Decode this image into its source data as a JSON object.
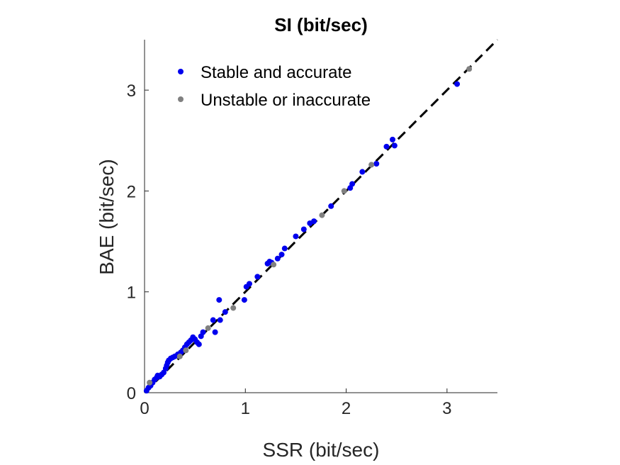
{
  "chart_data": {
    "type": "scatter",
    "title": "SI (bit/sec)",
    "xlabel": "SSR (bit/sec)",
    "ylabel": "BAE (bit/sec)",
    "xlim": [
      0,
      3.5
    ],
    "ylim": [
      0,
      3.5
    ],
    "x_ticks": [
      0,
      1,
      2,
      3
    ],
    "y_ticks": [
      0,
      1,
      2,
      3
    ],
    "legend_position": "top-left",
    "reference_line": {
      "style": "dashed",
      "color": "#000000",
      "points": [
        [
          0,
          0
        ],
        [
          3.5,
          3.5
        ]
      ]
    },
    "series": [
      {
        "name": "Stable and accurate",
        "color": "#0000ee",
        "points": [
          [
            0.02,
            0.02
          ],
          [
            0.04,
            0.05
          ],
          [
            0.06,
            0.07
          ],
          [
            0.08,
            0.1
          ],
          [
            0.1,
            0.13
          ],
          [
            0.12,
            0.15
          ],
          [
            0.13,
            0.17
          ],
          [
            0.15,
            0.16
          ],
          [
            0.17,
            0.18
          ],
          [
            0.19,
            0.2
          ],
          [
            0.21,
            0.24
          ],
          [
            0.22,
            0.27
          ],
          [
            0.23,
            0.3
          ],
          [
            0.24,
            0.32
          ],
          [
            0.26,
            0.34
          ],
          [
            0.28,
            0.35
          ],
          [
            0.3,
            0.36
          ],
          [
            0.33,
            0.38
          ],
          [
            0.36,
            0.4
          ],
          [
            0.38,
            0.42
          ],
          [
            0.4,
            0.45
          ],
          [
            0.42,
            0.48
          ],
          [
            0.44,
            0.5
          ],
          [
            0.46,
            0.52
          ],
          [
            0.48,
            0.55
          ],
          [
            0.5,
            0.53
          ],
          [
            0.52,
            0.5
          ],
          [
            0.54,
            0.48
          ],
          [
            0.56,
            0.56
          ],
          [
            0.58,
            0.6
          ],
          [
            0.68,
            0.72
          ],
          [
            0.7,
            0.6
          ],
          [
            0.74,
            0.92
          ],
          [
            0.75,
            0.72
          ],
          [
            0.8,
            0.8
          ],
          [
            0.99,
            0.92
          ],
          [
            1.01,
            1.05
          ],
          [
            1.04,
            1.08
          ],
          [
            1.12,
            1.15
          ],
          [
            1.22,
            1.28
          ],
          [
            1.24,
            1.3
          ],
          [
            1.26,
            1.29
          ],
          [
            1.32,
            1.33
          ],
          [
            1.36,
            1.37
          ],
          [
            1.39,
            1.43
          ],
          [
            1.5,
            1.55
          ],
          [
            1.58,
            1.62
          ],
          [
            1.64,
            1.68
          ],
          [
            1.68,
            1.7
          ],
          [
            1.85,
            1.85
          ],
          [
            2.04,
            2.03
          ],
          [
            2.06,
            2.07
          ],
          [
            2.16,
            2.19
          ],
          [
            2.3,
            2.27
          ],
          [
            2.4,
            2.44
          ],
          [
            2.46,
            2.51
          ],
          [
            2.48,
            2.45
          ],
          [
            3.1,
            3.06
          ]
        ]
      },
      {
        "name": "Unstable or inaccurate",
        "color": "#808080",
        "points": [
          [
            0.05,
            0.1
          ],
          [
            0.35,
            0.36
          ],
          [
            0.41,
            0.42
          ],
          [
            0.63,
            0.64
          ],
          [
            0.88,
            0.84
          ],
          [
            1.28,
            1.27
          ],
          [
            1.76,
            1.76
          ],
          [
            1.98,
            2.0
          ],
          [
            2.25,
            2.26
          ],
          [
            3.22,
            3.21
          ]
        ]
      }
    ]
  }
}
